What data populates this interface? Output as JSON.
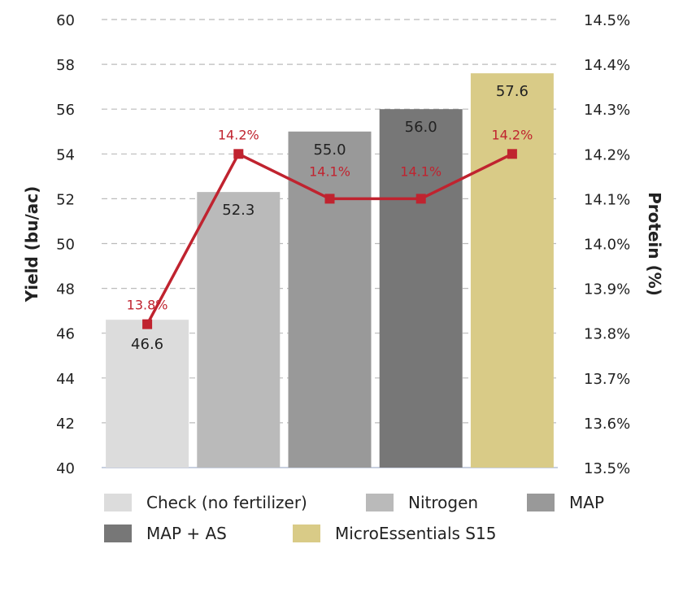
{
  "chart_data": {
    "type": "bar",
    "categories": [
      "Check (no fertilizer)",
      "Nitrogen",
      "MAP",
      "MAP + AS",
      "MicroEssentials S15"
    ],
    "series": [
      {
        "name": "Yield",
        "axis": "left",
        "type": "bar",
        "values": [
          46.6,
          52.3,
          55.0,
          56.0,
          57.6
        ],
        "labels": [
          "46.6",
          "52.3",
          "55.0",
          "56.0",
          "57.6"
        ]
      },
      {
        "name": "Protein",
        "axis": "right",
        "type": "line",
        "values": [
          13.82,
          14.2,
          14.1,
          14.1,
          14.2
        ],
        "labels": [
          "13.8%",
          "14.2%",
          "14.1%",
          "14.1%",
          "14.2%"
        ]
      }
    ],
    "ylabel": "Yield (bu/ac)",
    "y2label": "Protein (%)",
    "ylim": [
      40,
      60
    ],
    "y2lim": [
      13.5,
      14.5
    ],
    "yticks": [
      "40",
      "42",
      "44",
      "46",
      "48",
      "50",
      "52",
      "54",
      "56",
      "58",
      "60"
    ],
    "y2ticks": [
      "13.5%",
      "13.6%",
      "13.7%",
      "13.8%",
      "13.9%",
      "14.0%",
      "14.1%",
      "14.2%",
      "14.3%",
      "14.4%",
      "14.5%"
    ],
    "grid": true,
    "legend_position": "bottom",
    "colors": [
      "#dcdcdc",
      "#bababa",
      "#999999",
      "#777777",
      "#d9cb87"
    ],
    "line_color": "#c0232f"
  }
}
